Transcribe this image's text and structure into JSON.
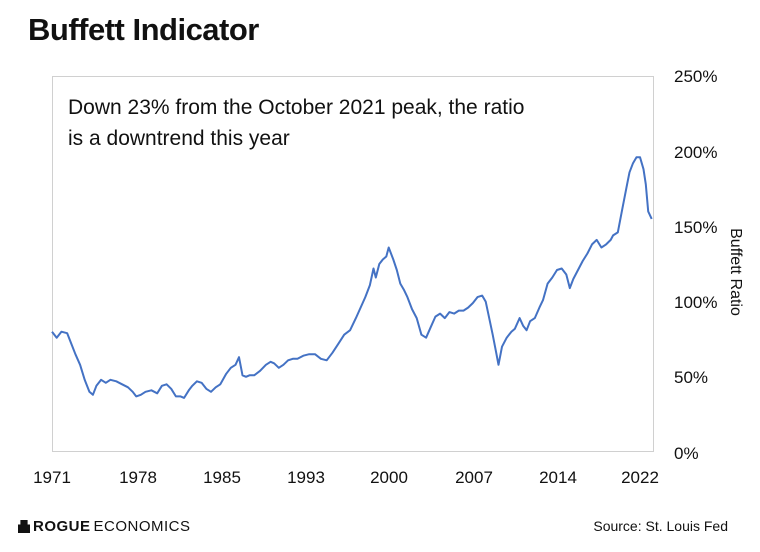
{
  "title": "Buffett Indicator",
  "annotation_line1": "Down 23% from the October 2021 peak, the ratio",
  "annotation_line2": "is a downtrend this year",
  "brand": {
    "bold": "ROGUE",
    "rest": "ECONOMICS"
  },
  "source": "Source: St. Louis Fed",
  "colors": {
    "line": "#4472C4",
    "frame": "#d0d0d0"
  },
  "chart_data": {
    "type": "line",
    "title": "Buffett Indicator",
    "ylabel": "Buffett Ratio",
    "xlabel": "",
    "ylim": [
      0,
      250
    ],
    "xlim": [
      1971,
      2022.5
    ],
    "x_ticks": [
      "1971",
      "1978",
      "1985",
      "1993",
      "2000",
      "2007",
      "2014",
      "2022"
    ],
    "y_ticks": [
      "0%",
      "50%",
      "100%",
      "150%",
      "200%",
      "250%"
    ],
    "grid": false,
    "legend": "none",
    "series": [
      {
        "x": [
          1971.0,
          1971.4,
          1971.8,
          1972.3,
          1972.7,
          1973.0,
          1973.4,
          1973.8,
          1974.2,
          1974.5,
          1974.8,
          1975.2,
          1975.6,
          1976.0,
          1976.5,
          1977.0,
          1977.5,
          1977.9,
          1978.2,
          1978.6,
          1979.0,
          1979.5,
          1980.0,
          1980.4,
          1980.8,
          1981.2,
          1981.6,
          1982.0,
          1982.3,
          1982.7,
          1983.0,
          1983.4,
          1983.8,
          1984.2,
          1984.6,
          1985.0,
          1985.4,
          1985.9,
          1986.3,
          1986.7,
          1987.0,
          1987.3,
          1987.6,
          1987.9,
          1988.3,
          1988.8,
          1989.3,
          1989.7,
          1990.0,
          1990.4,
          1990.8,
          1991.2,
          1991.6,
          1992.0,
          1992.5,
          1993.0,
          1993.5,
          1994.0,
          1994.5,
          1995.0,
          1995.5,
          1996.0,
          1996.5,
          1997.0,
          1997.4,
          1997.8,
          1998.2,
          1998.5,
          1998.7,
          1999.0,
          1999.3,
          1999.6,
          1999.8,
          2000.0,
          2000.2,
          2000.5,
          2000.8,
          2001.1,
          2001.4,
          2001.8,
          2002.2,
          2002.6,
          2003.0,
          2003.4,
          2003.8,
          2004.2,
          2004.6,
          2005.0,
          2005.4,
          2005.8,
          2006.2,
          2006.6,
          2007.0,
          2007.4,
          2007.8,
          2008.1,
          2008.4,
          2008.7,
          2009.0,
          2009.2,
          2009.5,
          2009.9,
          2010.3,
          2010.6,
          2011.0,
          2011.3,
          2011.6,
          2011.9,
          2012.3,
          2012.7,
          2013.0,
          2013.4,
          2013.8,
          2014.2,
          2014.6,
          2015.0,
          2015.3,
          2015.6,
          2016.0,
          2016.4,
          2016.8,
          2017.2,
          2017.6,
          2018.0,
          2018.4,
          2018.8,
          2019.0,
          2019.4,
          2019.8,
          2020.2,
          2020.4,
          2020.7,
          2021.0,
          2021.3,
          2021.6,
          2021.8,
          2022.0,
          2022.3
        ],
        "y": [
          80,
          76,
          80,
          79,
          71,
          65,
          58,
          48,
          40,
          38,
          44,
          48,
          46,
          48,
          47,
          45,
          43,
          40,
          37,
          38,
          40,
          41,
          39,
          44,
          45,
          42,
          37,
          37,
          36,
          41,
          44,
          47,
          46,
          42,
          40,
          43,
          45,
          52,
          56,
          58,
          63,
          51,
          50,
          51,
          51,
          54,
          58,
          60,
          59,
          56,
          58,
          61,
          62,
          62,
          64,
          65,
          65,
          62,
          61,
          66,
          72,
          78,
          81,
          89,
          96,
          103,
          111,
          122,
          116,
          125,
          128,
          130,
          136,
          132,
          128,
          121,
          112,
          108,
          103,
          95,
          89,
          78,
          76,
          83,
          90,
          92,
          89,
          93,
          92,
          94,
          94,
          96,
          99,
          103,
          104,
          100,
          89,
          78,
          66,
          58,
          70,
          76,
          80,
          82,
          89,
          84,
          81,
          87,
          89,
          96,
          101,
          112,
          116,
          121,
          122,
          118,
          109,
          115,
          121,
          127,
          132,
          138,
          141,
          136,
          138,
          141,
          144,
          146,
          162,
          178,
          186,
          192,
          196,
          196,
          188,
          178,
          160,
          155
        ]
      }
    ]
  }
}
